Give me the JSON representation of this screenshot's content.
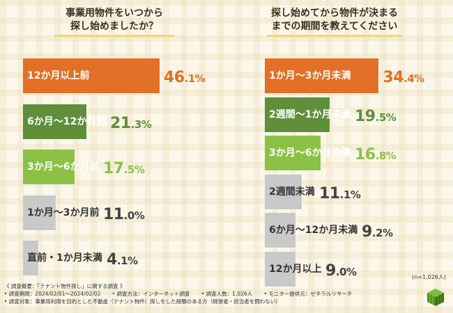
{
  "colors": {
    "highlight": "#e27026",
    "second": "#5f8f3a",
    "third": "#8cc145",
    "gray": "#c9c9c9",
    "title_underline": "#f3d57a"
  },
  "chart_data": [
    {
      "type": "bar",
      "orientation": "horizontal",
      "title": "事業用物件をいつから探し始めましたか？",
      "title_lines": [
        "事業用物件をいつから",
        "探し始めましたか？"
      ],
      "unit": "%",
      "categories": [
        "12か月以上前",
        "6か月〜12か月前",
        "3か月〜6か月前",
        "1か月〜3か月前",
        "直前・1か月未満"
      ],
      "values": [
        46.1,
        21.3,
        17.5,
        11.0,
        4.1
      ],
      "value_parts": [
        [
          "46",
          ".1%"
        ],
        [
          "21",
          ".3%"
        ],
        [
          "17",
          ".5%"
        ],
        [
          "11",
          ".0%"
        ],
        [
          "4",
          ".1%"
        ]
      ],
      "bar_colors": [
        "#e27026",
        "#5f8f3a",
        "#8cc145",
        "#c9c9c9",
        "#c9c9c9"
      ],
      "label_colors": [
        "#ffffff",
        "#ffffff",
        "#ffffff",
        "#333333",
        "#333333"
      ],
      "value_colors": [
        "#e27026",
        "#5f8f3a",
        "#8cc145",
        "#444444",
        "#444444"
      ]
    },
    {
      "type": "bar",
      "orientation": "horizontal",
      "title": "探し始めてから物件が決まるまでの期間を教えてください",
      "title_lines": [
        "探し始めてから物件が決まる",
        "までの期間を教えてください"
      ],
      "unit": "%",
      "categories": [
        "1か月〜3か月未満",
        "2週間〜1か月未満",
        "3か月〜6か月未満",
        "2週間未満",
        "6か月〜12か月未満",
        "12か月以上"
      ],
      "values": [
        34.4,
        19.5,
        16.8,
        11.1,
        9.2,
        9.0
      ],
      "value_parts": [
        [
          "34",
          ".4%"
        ],
        [
          "19",
          ".5%"
        ],
        [
          "16",
          ".8%"
        ],
        [
          "11",
          ".1%"
        ],
        [
          "9",
          ".2%"
        ],
        [
          "9",
          ".0%"
        ]
      ],
      "bar_colors": [
        "#e27026",
        "#5f8f3a",
        "#8cc145",
        "#c9c9c9",
        "#c9c9c9",
        "#c9c9c9"
      ],
      "label_colors": [
        "#ffffff",
        "#ffffff",
        "#ffffff",
        "#333333",
        "#333333",
        "#333333"
      ],
      "value_colors": [
        "#e27026",
        "#5f8f3a",
        "#8cc145",
        "#444444",
        "#444444",
        "#444444"
      ]
    }
  ],
  "note": "(n=1,026人)",
  "footer": {
    "line1": "《 調査概要：「テナント物件探し」に関する調査 》",
    "period": "• 調査期間：2024/02/01〜2024/02/02",
    "method": "• 調査方法：インターネット調査",
    "count": "• 調査人数：1,026人",
    "provider": "• モニター提供元：ゼネラルリサーチ",
    "target": "• 調査対象：事業用利用を目的とした不動産（テナント物件）探しをした経験のある方（経営者・担当者を問わない）"
  }
}
